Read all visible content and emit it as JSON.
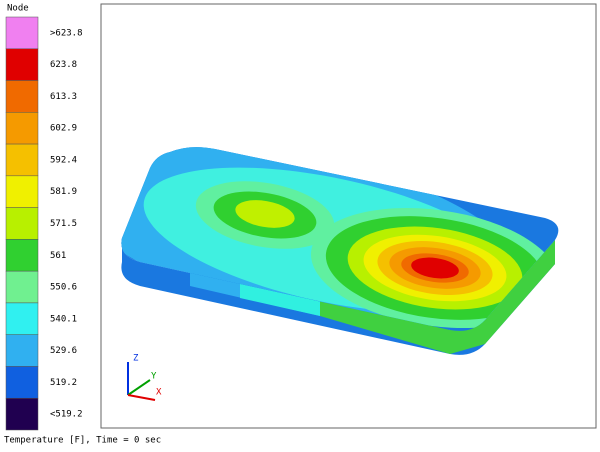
{
  "legend": {
    "title": "Node",
    "entries": [
      {
        "label": ">623.8",
        "color": "#f080f0"
      },
      {
        "label": "623.8",
        "color": "#e00000"
      },
      {
        "label": "613.3",
        "color": "#f06a00"
      },
      {
        "label": "602.9",
        "color": "#f59a00"
      },
      {
        "label": "592.4",
        "color": "#f5c000"
      },
      {
        "label": "581.9",
        "color": "#f0f000"
      },
      {
        "label": "571.5",
        "color": "#b8f000"
      },
      {
        "label": "561",
        "color": "#30d030"
      },
      {
        "label": "550.6",
        "color": "#70f090"
      },
      {
        "label": "540.1",
        "color": "#30f0f0"
      },
      {
        "label": "529.6",
        "color": "#30b0f0"
      },
      {
        "label": "519.2",
        "color": "#1060e0"
      },
      {
        "label": "<519.2",
        "color": "#200050"
      }
    ]
  },
  "triad": {
    "z": "Z",
    "y": "Y",
    "x": "X"
  },
  "caption": "Temperature [F], Time = 0 sec"
}
